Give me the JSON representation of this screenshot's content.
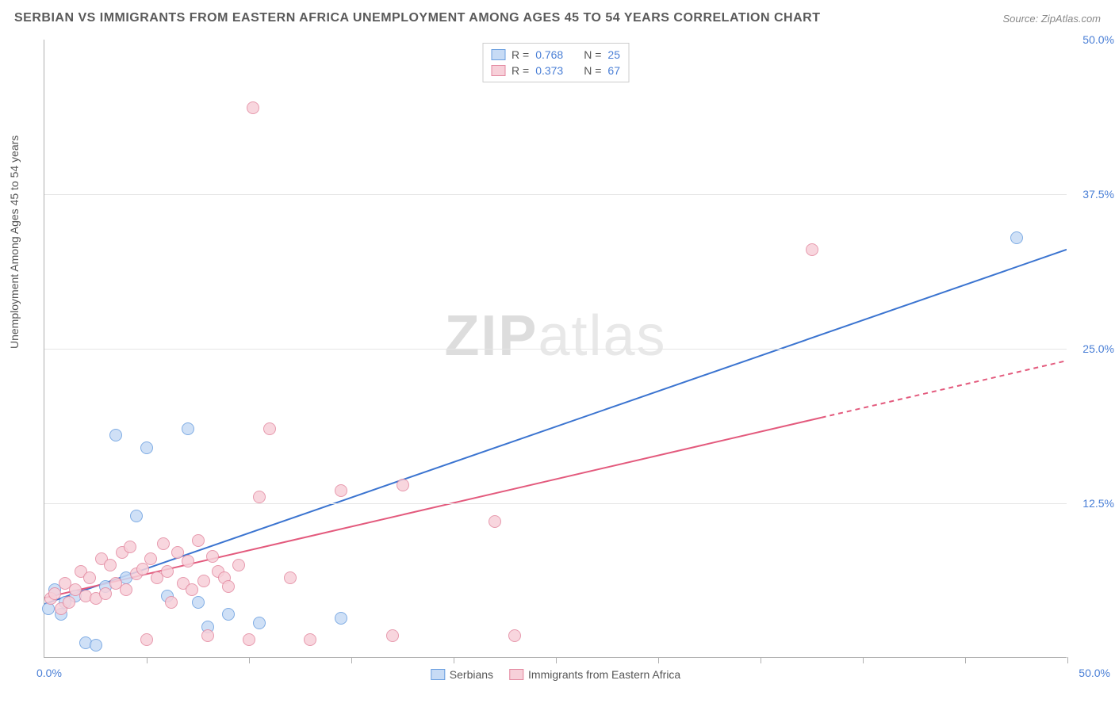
{
  "title": "SERBIAN VS IMMIGRANTS FROM EASTERN AFRICA UNEMPLOYMENT AMONG AGES 45 TO 54 YEARS CORRELATION CHART",
  "source": "Source: ZipAtlas.com",
  "y_axis_label": "Unemployment Among Ages 45 to 54 years",
  "watermark_bold": "ZIP",
  "watermark_light": "atlas",
  "chart": {
    "type": "scatter",
    "xlim": [
      0,
      50
    ],
    "ylim": [
      0,
      50
    ],
    "x_origin_label": "0.0%",
    "x_max_label": "50.0%",
    "y_tick_labels": [
      "12.5%",
      "25.0%",
      "37.5%",
      "50.0%"
    ],
    "y_tick_values": [
      12.5,
      25,
      37.5,
      50
    ],
    "x_tick_values": [
      5,
      10,
      15,
      20,
      25,
      30,
      35,
      40,
      45,
      50
    ],
    "grid_h_values": [
      12.5,
      25,
      37.5
    ],
    "grid_color": "#e5e5e5",
    "axis_color": "#b0b0b0",
    "tick_label_color": "#4a7fd6",
    "background_color": "#ffffff",
    "point_radius": 8,
    "series": [
      {
        "name": "Serbians",
        "fill": "#c7dbf5",
        "stroke": "#6b9fe0",
        "R": "0.768",
        "N": "25",
        "trend": {
          "x1": 0,
          "y1": 4.3,
          "x2": 50,
          "y2": 33,
          "solid_until_x": 50,
          "stroke": "#3b74d0",
          "width": 2
        },
        "points": [
          [
            0.2,
            4.0
          ],
          [
            0.5,
            5.5
          ],
          [
            0.8,
            3.5
          ],
          [
            1.0,
            4.5
          ],
          [
            1.5,
            5
          ],
          [
            2.0,
            1.2
          ],
          [
            2.5,
            1.0
          ],
          [
            3.0,
            5.8
          ],
          [
            3.5,
            18.0
          ],
          [
            4.0,
            6.5
          ],
          [
            4.5,
            11.5
          ],
          [
            5.0,
            17.0
          ],
          [
            6.0,
            5.0
          ],
          [
            7.0,
            18.5
          ],
          [
            7.5,
            4.5
          ],
          [
            8.0,
            2.5
          ],
          [
            9.0,
            3.5
          ],
          [
            10.5,
            2.8
          ],
          [
            14.5,
            3.2
          ],
          [
            47.5,
            34.0
          ]
        ]
      },
      {
        "name": "Immigrants from Eastern Africa",
        "fill": "#f7d0d9",
        "stroke": "#e389a0",
        "R": "0.373",
        "N": "67",
        "trend": {
          "x1": 0,
          "y1": 4.8,
          "x2": 50,
          "y2": 24,
          "solid_until_x": 38,
          "stroke": "#e35a7d",
          "width": 2
        },
        "points": [
          [
            0.3,
            4.8
          ],
          [
            0.5,
            5.2
          ],
          [
            0.8,
            4.0
          ],
          [
            1.0,
            6.0
          ],
          [
            1.2,
            4.5
          ],
          [
            1.5,
            5.5
          ],
          [
            1.8,
            7.0
          ],
          [
            2.0,
            5.0
          ],
          [
            2.2,
            6.5
          ],
          [
            2.5,
            4.8
          ],
          [
            2.8,
            8.0
          ],
          [
            3.0,
            5.2
          ],
          [
            3.2,
            7.5
          ],
          [
            3.5,
            6.0
          ],
          [
            3.8,
            8.5
          ],
          [
            4.0,
            5.5
          ],
          [
            4.2,
            9.0
          ],
          [
            4.5,
            6.8
          ],
          [
            4.8,
            7.2
          ],
          [
            5.0,
            1.5
          ],
          [
            5.2,
            8.0
          ],
          [
            5.5,
            6.5
          ],
          [
            5.8,
            9.2
          ],
          [
            6.0,
            7.0
          ],
          [
            6.2,
            4.5
          ],
          [
            6.5,
            8.5
          ],
          [
            6.8,
            6.0
          ],
          [
            7.0,
            7.8
          ],
          [
            7.2,
            5.5
          ],
          [
            7.5,
            9.5
          ],
          [
            7.8,
            6.2
          ],
          [
            8.0,
            1.8
          ],
          [
            8.2,
            8.2
          ],
          [
            8.5,
            7.0
          ],
          [
            8.8,
            6.5
          ],
          [
            9.0,
            5.8
          ],
          [
            9.5,
            7.5
          ],
          [
            10.0,
            1.5
          ],
          [
            10.5,
            13.0
          ],
          [
            11.0,
            18.5
          ],
          [
            12.0,
            6.5
          ],
          [
            13.0,
            1.5
          ],
          [
            14.5,
            13.5
          ],
          [
            17.0,
            1.8
          ],
          [
            17.5,
            14.0
          ],
          [
            22.0,
            11.0
          ],
          [
            23.0,
            1.8
          ],
          [
            10.2,
            44.5
          ],
          [
            37.5,
            33.0
          ]
        ]
      }
    ]
  },
  "legend_top_labels": {
    "R": "R =",
    "N": "N ="
  },
  "legend_bottom": [
    "Serbians",
    "Immigrants from Eastern Africa"
  ]
}
